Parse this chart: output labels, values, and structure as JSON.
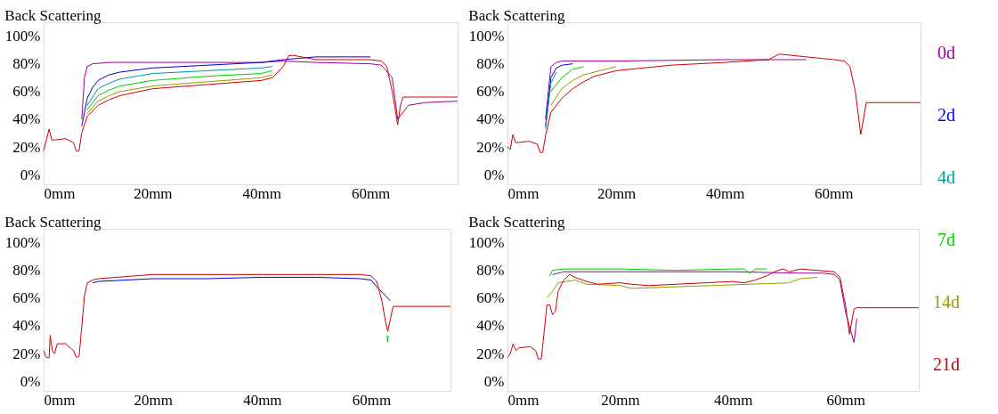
{
  "chart_data": [
    {
      "type": "line",
      "title": "Back Scattering",
      "xlim": [
        0,
        76
      ],
      "ylim": [
        -7,
        110
      ],
      "xticks": [
        {
          "value": 0,
          "label": "0mm"
        },
        {
          "value": 20,
          "label": "20mm"
        },
        {
          "value": 40,
          "label": "40mm"
        },
        {
          "value": 60,
          "label": "60mm"
        }
      ],
      "yticks": [
        {
          "value": 0,
          "label": "0%"
        },
        {
          "value": 20,
          "label": "20%"
        },
        {
          "value": 40,
          "label": "40%"
        },
        {
          "value": 60,
          "label": "60%"
        },
        {
          "value": 80,
          "label": "80%"
        },
        {
          "value": 100,
          "label": "100%"
        }
      ],
      "grid": false,
      "marker": "none",
      "line_style": "solid",
      "series": [
        {
          "color": "#990099",
          "x": [
            7,
            7.5,
            8,
            9,
            12,
            20,
            30,
            40,
            44,
            50,
            60,
            62,
            64,
            65,
            66,
            67,
            70,
            76
          ],
          "values": [
            40,
            70,
            78,
            80,
            81,
            81,
            81,
            81,
            82,
            81,
            80,
            79,
            70,
            40,
            45,
            50,
            52,
            53
          ]
        },
        {
          "color": "#0000cc",
          "x": [
            7,
            8,
            9,
            10,
            12,
            14,
            16,
            20,
            30,
            40,
            44,
            50,
            60
          ],
          "values": [
            35,
            55,
            63,
            68,
            72,
            74,
            75,
            77,
            79,
            81,
            83,
            85,
            85
          ]
        },
        {
          "color": "#009999",
          "x": [
            8,
            10,
            12,
            14,
            20,
            30,
            40,
            42
          ],
          "values": [
            50,
            62,
            66,
            69,
            73,
            75,
            77,
            78
          ]
        },
        {
          "color": "#00cc00",
          "x": [
            8,
            10,
            12,
            14,
            20,
            30,
            40,
            42
          ],
          "values": [
            47,
            57,
            61,
            64,
            68,
            71,
            73,
            75
          ]
        },
        {
          "color": "#999900",
          "x": [
            8,
            10,
            12,
            14,
            20,
            30,
            40,
            42
          ],
          "values": [
            44,
            53,
            57,
            60,
            64,
            67,
            70,
            72
          ]
        },
        {
          "color": "#cc0000",
          "x": [
            0,
            0.5,
            1,
            1.5,
            2,
            4,
            5.5,
            6,
            6.5,
            7,
            8,
            10,
            12,
            14,
            20,
            30,
            40,
            42,
            44,
            45,
            46,
            50,
            60,
            62,
            63,
            64,
            65,
            65.5,
            66,
            67,
            76
          ],
          "values": [
            17,
            25,
            33,
            25,
            25,
            26,
            23,
            17,
            17,
            30,
            42,
            50,
            54,
            57,
            62,
            65,
            68,
            70,
            78,
            86,
            86,
            83,
            83,
            82,
            78,
            60,
            36,
            50,
            56,
            56,
            56
          ]
        }
      ]
    },
    {
      "type": "line",
      "title": "Back Scattering",
      "xlim": [
        0,
        76
      ],
      "ylim": [
        -7,
        110
      ],
      "xticks": [
        {
          "value": 0,
          "label": "0mm"
        },
        {
          "value": 20,
          "label": "20mm"
        },
        {
          "value": 40,
          "label": "40mm"
        },
        {
          "value": 60,
          "label": "60mm"
        }
      ],
      "yticks": [
        {
          "value": 0,
          "label": "0%"
        },
        {
          "value": 20,
          "label": "20%"
        },
        {
          "value": 40,
          "label": "40%"
        },
        {
          "value": 60,
          "label": "60%"
        },
        {
          "value": 80,
          "label": "80%"
        },
        {
          "value": 100,
          "label": "100%"
        }
      ],
      "grid": false,
      "marker": "none",
      "line_style": "solid",
      "series": [
        {
          "name": "0d",
          "color": "#990099",
          "x": [
            7,
            8,
            9,
            10,
            20,
            40,
            55
          ],
          "values": [
            40,
            78,
            81,
            82,
            82,
            83,
            83
          ]
        },
        {
          "name": "2d",
          "color": "#0000cc",
          "x": [
            7,
            8,
            9,
            10,
            12
          ],
          "values": [
            35,
            70,
            77,
            79,
            80
          ]
        },
        {
          "name": "4d",
          "color": "#009999",
          "x": [
            7,
            8,
            9
          ],
          "values": [
            33,
            66,
            74
          ]
        },
        {
          "name": "7d",
          "color": "#00cc00",
          "x": [
            8,
            10,
            12,
            14
          ],
          "values": [
            60,
            70,
            76,
            78
          ]
        },
        {
          "name": "14d",
          "color": "#999900",
          "x": [
            8,
            10,
            12,
            14,
            20
          ],
          "values": [
            50,
            62,
            68,
            72,
            78
          ]
        },
        {
          "name": "21d",
          "color": "#cc0000",
          "x": [
            0,
            0.5,
            1,
            1.5,
            4,
            5.5,
            6,
            6.5,
            7,
            8,
            10,
            12,
            14,
            16,
            20,
            30,
            40,
            48,
            50,
            60,
            62,
            63,
            64,
            65,
            65.5,
            66,
            67,
            76
          ],
          "values": [
            20,
            18,
            29,
            23,
            24,
            22,
            16,
            16,
            28,
            45,
            55,
            62,
            67,
            71,
            75,
            79,
            81,
            83,
            87,
            83,
            82,
            78,
            60,
            29,
            40,
            52,
            52,
            52
          ]
        }
      ]
    },
    {
      "type": "line",
      "title": "Back Scattering",
      "xlim": [
        0,
        74.5
      ],
      "ylim": [
        -7,
        110
      ],
      "xticks": [
        {
          "value": 0,
          "label": "0mm"
        },
        {
          "value": 20,
          "label": "20mm"
        },
        {
          "value": 40,
          "label": "40mm"
        },
        {
          "value": 60,
          "label": "60mm"
        }
      ],
      "yticks": [
        {
          "value": 0,
          "label": "0%"
        },
        {
          "value": 20,
          "label": "20%"
        },
        {
          "value": 40,
          "label": "40%"
        },
        {
          "value": 60,
          "label": "60%"
        },
        {
          "value": 80,
          "label": "80%"
        },
        {
          "value": 100,
          "label": "100%"
        }
      ],
      "grid": false,
      "marker": "none",
      "line_style": "solid",
      "series": [
        {
          "color": "#0000cc",
          "x": [
            9,
            10,
            20,
            30,
            40,
            50,
            58,
            60,
            61,
            63.5
          ],
          "values": [
            71,
            72,
            74,
            74,
            75,
            75,
            74,
            73,
            68,
            58
          ]
        },
        {
          "color": "#00cc00",
          "x": [
            62.9,
            63,
            63.1
          ],
          "values": [
            33,
            28,
            33
          ]
        },
        {
          "color": "#cc0000",
          "x": [
            0,
            0.5,
            1,
            1.2,
            1.6,
            2,
            2.5,
            4,
            5.5,
            6,
            6.5,
            7,
            7.5,
            8,
            9,
            10,
            20,
            30,
            40,
            50,
            58,
            60,
            61,
            62,
            62.5,
            63,
            63.5,
            64,
            74.5
          ],
          "values": [
            22,
            17,
            17,
            33,
            22,
            20,
            27,
            27,
            22,
            17,
            18,
            40,
            62,
            71,
            73,
            74,
            77,
            77,
            77,
            77,
            77,
            76,
            72,
            57,
            45,
            36,
            45,
            54,
            54
          ]
        }
      ]
    },
    {
      "type": "line",
      "title": "Back Scattering",
      "xlim": [
        0,
        73
      ],
      "ylim": [
        -7,
        110
      ],
      "xticks": [
        {
          "value": 0,
          "label": "0mm"
        },
        {
          "value": 20,
          "label": "20mm"
        },
        {
          "value": 40,
          "label": "40mm"
        },
        {
          "value": 60,
          "label": "60mm"
        }
      ],
      "yticks": [
        {
          "value": 0,
          "label": "0%"
        },
        {
          "value": 20,
          "label": "20%"
        },
        {
          "value": 40,
          "label": "40%"
        },
        {
          "value": 60,
          "label": "60%"
        },
        {
          "value": 80,
          "label": "80%"
        },
        {
          "value": 100,
          "label": "100%"
        }
      ],
      "grid": false,
      "marker": "none",
      "line_style": "solid",
      "series": [
        {
          "color": "#990099",
          "x": [
            8,
            10,
            20,
            30,
            40,
            52,
            56,
            58,
            59,
            60,
            61,
            61.5,
            62
          ],
          "values": [
            77,
            79,
            79,
            79,
            79,
            78,
            78,
            77,
            73,
            50,
            35,
            28,
            45
          ]
        },
        {
          "color": "#00cc00",
          "x": [
            7.5,
            8,
            10,
            20,
            30,
            40,
            42,
            43,
            44,
            46
          ],
          "values": [
            76,
            80,
            81,
            81,
            80,
            81,
            81,
            78,
            81,
            81
          ]
        },
        {
          "color": "#999900",
          "x": [
            7,
            8,
            9,
            12,
            14,
            20,
            22,
            50,
            52,
            55
          ],
          "values": [
            60,
            65,
            71,
            73,
            70,
            69,
            67,
            71,
            74,
            75
          ]
        },
        {
          "color": "#cc0000",
          "x": [
            0,
            0.5,
            1,
            1.5,
            2,
            4,
            5,
            5.5,
            6,
            6.5,
            7,
            7.5,
            8,
            8.5,
            9,
            10,
            11,
            12,
            14,
            16,
            20,
            22,
            25,
            30,
            40,
            42,
            44,
            46,
            48,
            49,
            50,
            52,
            58,
            59,
            60,
            60.7,
            61.5,
            62,
            73
          ],
          "values": [
            17,
            20,
            27,
            22,
            24,
            25,
            22,
            16,
            16,
            35,
            55,
            55,
            48,
            50,
            65,
            73,
            77,
            75,
            72,
            70,
            71,
            70,
            69,
            70,
            72,
            71,
            73,
            76,
            80,
            81,
            79,
            81,
            79,
            75,
            55,
            34,
            52,
            53,
            53
          ]
        }
      ]
    }
  ]
}
